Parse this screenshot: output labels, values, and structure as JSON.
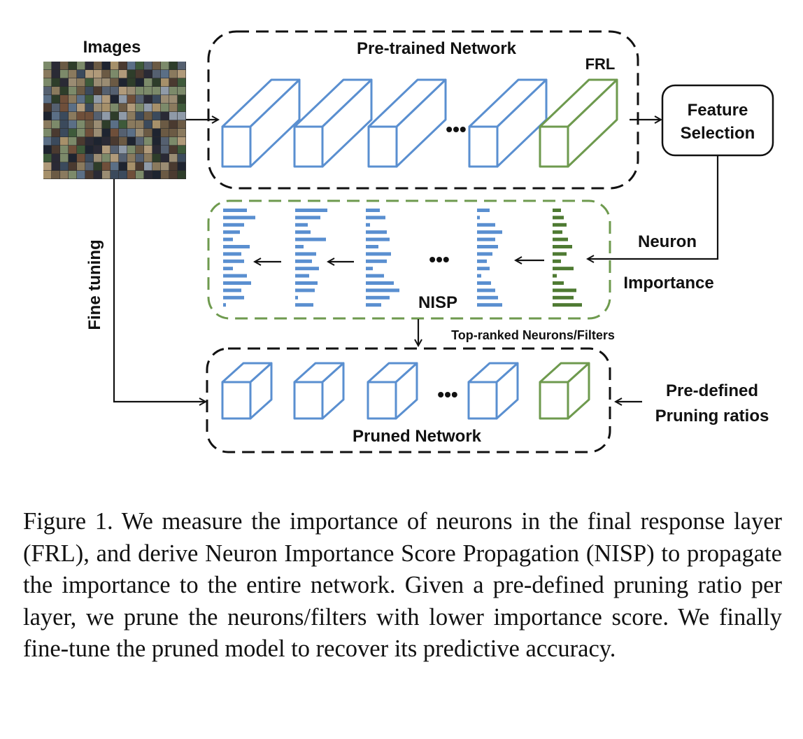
{
  "labels": {
    "images": "Images",
    "pretrained_network": "Pre-trained Network",
    "frl": "FRL",
    "feature_selection_line1": "Feature",
    "feature_selection_line2": "Selection",
    "neuron": "Neuron",
    "importance": "Importance",
    "nisp": "NISP",
    "fine_tuning": "Fine tuning",
    "top_ranked": "Top-ranked Neurons/Filters",
    "predefined_line1": "Pre-defined",
    "predefined_line2": "Pruning ratios",
    "pruned_network": "Pruned Network",
    "ellipsis": "•••"
  },
  "colors": {
    "blue_layer": "#5a8fd0",
    "green_layer": "#6e9a4e",
    "dark_green_bars": "#4e7a32",
    "dashed_border": "#111111",
    "green_dashed_border": "#6e9a4e"
  },
  "caption": "Figure 1. We measure the importance of neurons in the final response layer (FRL), and derive Neuron Importance Score Propagation (NISP) to propagate the importance to the entire network. Given a pre-defined pruning ratio per layer, we prune the neurons/filters with lower importance score. We finally fine-tune the pruned model to recover its predictive accuracy."
}
